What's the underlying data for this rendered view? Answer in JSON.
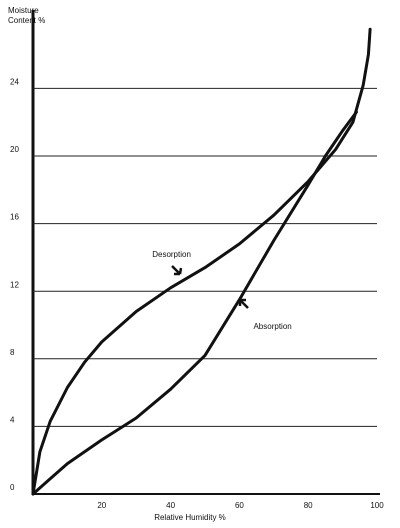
{
  "chart_data": {
    "type": "line",
    "ylabel": [
      "Moisture",
      "Content %"
    ],
    "xlabel": "Relative Humidity %",
    "xlim": [
      0,
      100
    ],
    "xticks": [
      20,
      40,
      60,
      80,
      100
    ],
    "ylim": [
      0,
      28.6
    ],
    "yticks": [
      0,
      4,
      8,
      12,
      16,
      20,
      24
    ],
    "grid": true,
    "series": [
      {
        "name": "Desorption",
        "color": "#111111",
        "x": [
          0,
          2,
          5,
          10,
          15,
          20,
          30,
          40,
          50,
          60,
          70,
          80,
          88,
          93,
          96,
          97.5,
          98
        ],
        "values": [
          0,
          2.5,
          4.3,
          6.3,
          7.8,
          9,
          10.8,
          12.2,
          13.4,
          14.8,
          16.5,
          18.5,
          20.4,
          22,
          24.2,
          26,
          27.5
        ]
      },
      {
        "name": "Absorption",
        "color": "#111111",
        "x": [
          0,
          5,
          10,
          20,
          30,
          40,
          50,
          60,
          70,
          80,
          85,
          90,
          94
        ],
        "values": [
          0,
          0.9,
          1.8,
          3.2,
          4.5,
          6.2,
          8.2,
          11.5,
          15,
          18.3,
          20,
          21.5,
          22.6
        ]
      }
    ]
  }
}
